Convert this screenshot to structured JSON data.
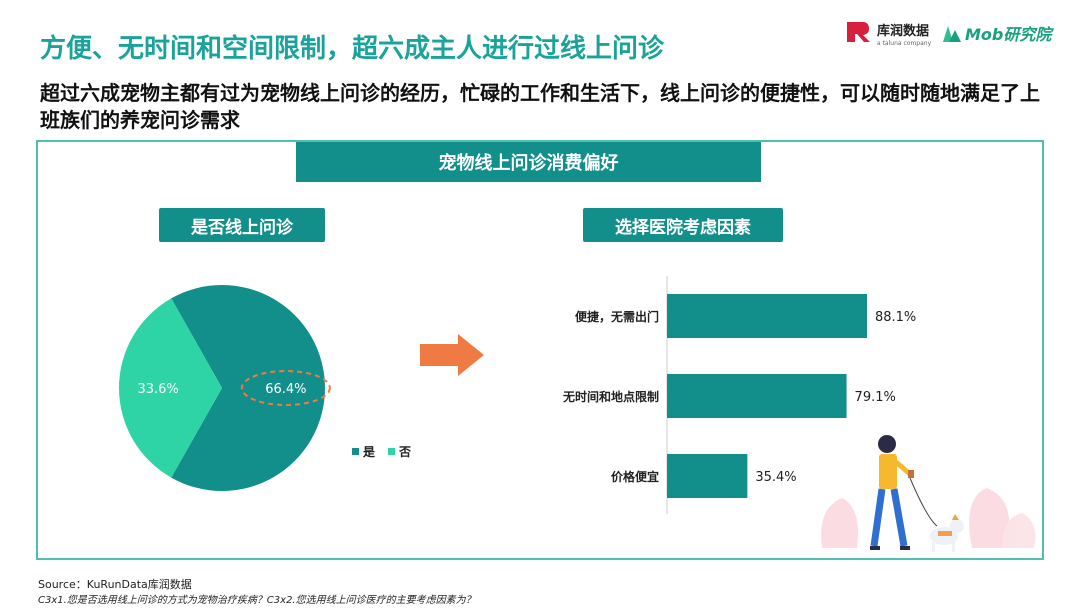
{
  "header": {
    "title": "方便、无时间和空间限制，超六成主人进行过线上问诊",
    "subtitle": "超过六成宠物主都有过为宠物线上问诊的经历，忙碌的工作和生活下，线上问诊的便捷性，可以随时随地满足了上班族们的养宠问诊需求",
    "logo_left": "库润数据",
    "logo_left_sub": "a taluna company",
    "logo_right": "Mob研究院"
  },
  "panel": {
    "title": "宠物线上问诊消费偏好"
  },
  "chart_data": [
    {
      "type": "pie",
      "title": "是否线上问诊",
      "categories": [
        "是",
        "否"
      ],
      "values": [
        66.4,
        33.6
      ],
      "labels": [
        "66.4%",
        "33.6%"
      ],
      "colors": [
        "#128f8a",
        "#2fd4a6"
      ],
      "legend": "right",
      "highlight": "66.4%"
    },
    {
      "type": "bar",
      "orientation": "horizontal",
      "title": "选择医院考虑因素",
      "categories": [
        "便捷，无需出门",
        "无时间和地点限制",
        "价格便宜"
      ],
      "values": [
        88.1,
        79.1,
        35.4
      ],
      "labels": [
        "88.1%",
        "79.1%",
        "35.4%"
      ],
      "color": "#128f8a",
      "xlim": [
        0,
        100
      ]
    }
  ],
  "footer": {
    "source": "Source：KuRunData库润数据",
    "note": "C3x1.您是否选用线上问诊的方式为宠物治疗疾病？C3x2.您选用线上问诊医疗的主要考虑因素为？"
  },
  "colors": {
    "accent": "#1aa39a",
    "dark_teal": "#128f8a",
    "light_green": "#2fd4a6",
    "arrow": "#f07a44",
    "logo_red": "#d6203c"
  }
}
